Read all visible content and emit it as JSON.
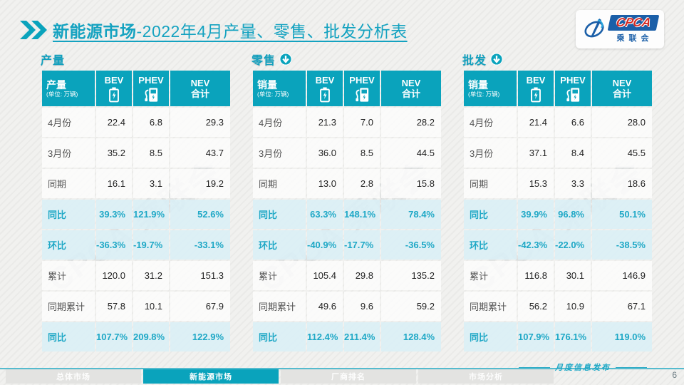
{
  "header": {
    "title_bold": "新能源市场",
    "title_rest": "-2022年4月产量、零售、批发分析表",
    "logo": {
      "acronym": "CPCA",
      "name_cn": "乘联会"
    }
  },
  "watermark": "CPCA 乘联会",
  "tables": [
    {
      "section_title": "产量",
      "arrow": false,
      "corner_label": "产量",
      "corner_unit": "(单位: 万辆)",
      "columns": [
        "BEV",
        "PHEV",
        "NEV\n合计"
      ],
      "rows": [
        {
          "label": "4月份",
          "values": [
            "22.4",
            "6.8",
            "29.3"
          ],
          "highlight": false
        },
        {
          "label": "3月份",
          "values": [
            "35.2",
            "8.5",
            "43.7"
          ],
          "highlight": false
        },
        {
          "label": "同期",
          "values": [
            "16.1",
            "3.1",
            "19.2"
          ],
          "highlight": false
        },
        {
          "label": "同比",
          "values": [
            "39.3%",
            "121.9%",
            "52.6%"
          ],
          "highlight": true
        },
        {
          "label": "环比",
          "values": [
            "-36.3%",
            "-19.7%",
            "-33.1%"
          ],
          "highlight": true
        },
        {
          "label": "累计",
          "values": [
            "120.0",
            "31.2",
            "151.3"
          ],
          "highlight": false
        },
        {
          "label": "同期累计",
          "values": [
            "57.8",
            "10.1",
            "67.9"
          ],
          "highlight": false
        },
        {
          "label": "同比",
          "values": [
            "107.7%",
            "209.8%",
            "122.9%"
          ],
          "highlight": true
        }
      ]
    },
    {
      "section_title": "零售",
      "arrow": true,
      "corner_label": "销量",
      "corner_unit": "(单位: 万辆)",
      "columns": [
        "BEV",
        "PHEV",
        "NEV\n合计"
      ],
      "rows": [
        {
          "label": "4月份",
          "values": [
            "21.3",
            "7.0",
            "28.2"
          ],
          "highlight": false
        },
        {
          "label": "3月份",
          "values": [
            "36.0",
            "8.5",
            "44.5"
          ],
          "highlight": false
        },
        {
          "label": "同期",
          "values": [
            "13.0",
            "2.8",
            "15.8"
          ],
          "highlight": false
        },
        {
          "label": "同比",
          "values": [
            "63.3%",
            "148.1%",
            "78.4%"
          ],
          "highlight": true
        },
        {
          "label": "环比",
          "values": [
            "-40.9%",
            "-17.7%",
            "-36.5%"
          ],
          "highlight": true
        },
        {
          "label": "累计",
          "values": [
            "105.4",
            "29.8",
            "135.2"
          ],
          "highlight": false
        },
        {
          "label": "同期累计",
          "values": [
            "49.6",
            "9.6",
            "59.2"
          ],
          "highlight": false
        },
        {
          "label": "同比",
          "values": [
            "112.4%",
            "211.4%",
            "128.4%"
          ],
          "highlight": true
        }
      ]
    },
    {
      "section_title": "批发",
      "arrow": true,
      "corner_label": "销量",
      "corner_unit": "(单位: 万辆)",
      "columns": [
        "BEV",
        "PHEV",
        "NEV\n合计"
      ],
      "rows": [
        {
          "label": "4月份",
          "values": [
            "21.4",
            "6.6",
            "28.0"
          ],
          "highlight": false
        },
        {
          "label": "3月份",
          "values": [
            "37.1",
            "8.4",
            "45.5"
          ],
          "highlight": false
        },
        {
          "label": "同期",
          "values": [
            "15.3",
            "3.3",
            "18.6"
          ],
          "highlight": false
        },
        {
          "label": "同比",
          "values": [
            "39.9%",
            "96.8%",
            "50.1%"
          ],
          "highlight": true
        },
        {
          "label": "环比",
          "values": [
            "-42.3%",
            "-22.0%",
            "-38.5%"
          ],
          "highlight": true
        },
        {
          "label": "累计",
          "values": [
            "116.8",
            "30.1",
            "146.9"
          ],
          "highlight": false
        },
        {
          "label": "同期累计",
          "values": [
            "56.2",
            "10.9",
            "67.1"
          ],
          "highlight": false
        },
        {
          "label": "同比",
          "values": [
            "107.9%",
            "176.1%",
            "119.0%"
          ],
          "highlight": true
        }
      ]
    }
  ],
  "footer": {
    "tabs": [
      {
        "label": "总体市场",
        "active": false
      },
      {
        "label": "新能源市场",
        "active": true
      },
      {
        "label": "厂商排名",
        "active": false
      },
      {
        "label": "市场分析",
        "active": false
      }
    ],
    "publish_label": "月度信息发布",
    "page_number": "6"
  },
  "colors": {
    "accent_teal": "#0AA3BC",
    "highlight_row_bg": "#DAEFF6",
    "percent_text": "#1FA8C6",
    "logo_blue": "#1B5FA8",
    "logo_red": "#D42B25"
  }
}
